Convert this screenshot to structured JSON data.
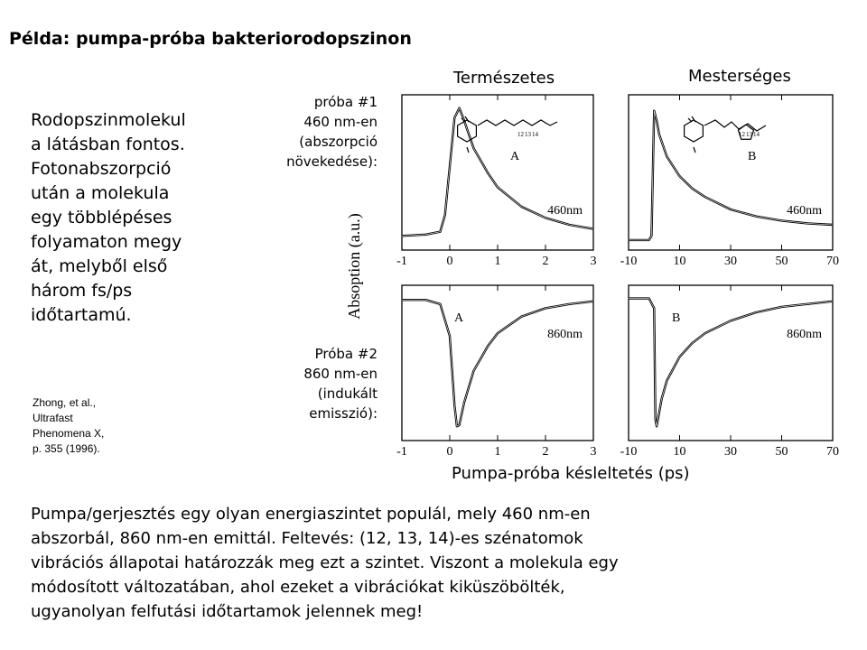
{
  "title": "Példa: pumpa-próba bakteriorodopszinon",
  "intro_lines": [
    "Rodopszinmolekul",
    "a látásban fontos.",
    "Fotonabszorpció",
    "után a molekula",
    "egy többlépéses",
    "folyamaton megy",
    "át, melyből első",
    "három fs/ps",
    "időtartamú."
  ],
  "reference_lines": [
    "Zhong, et al.,",
    "Ultrafast",
    "Phenomena X,",
    "p. 355 (1996)."
  ],
  "probe1_lines": [
    "próba #1",
    "460 nm-en",
    "(abszorpció",
    "növekedése):"
  ],
  "probe2_lines": [
    "Próba #2",
    "860 nm-en",
    "(indukált",
    "emisszió):"
  ],
  "column_natural": "Természetes",
  "column_artificial": "Mesterséges",
  "y_axis_label": "Absoption (a.u.)",
  "x_axis_label": "Pumpa-próba késleltetés (ps)",
  "bottom_lines": [
    "Pumpa/gerjesztés egy olyan energiaszintet populál, mely 460 nm-en",
    "abszorbál, 860 nm-en emittál.  Feltevés: (12, 13, 14)-es szénatomok",
    "vibrációs állapotai határozzák meg ezt a szintet. Viszont a molekula egy",
    "módosított változatában, ahol ezeket a vibrációkat kiküszöbölték,",
    "ugyanolyan felfutási időtartamok jelennek meg!"
  ],
  "chart_data": [
    {
      "type": "line",
      "panel": "top-left",
      "letter": "A",
      "annotation": "460nm",
      "molecule_labels": [
        "12",
        "13",
        "14"
      ],
      "xlim": [
        -1,
        3
      ],
      "x_ticks": [
        "-1",
        "0",
        "1",
        "2",
        "3"
      ],
      "x": [
        -1,
        -0.5,
        -0.2,
        -0.1,
        0,
        0.1,
        0.2,
        0.3,
        0.5,
        0.8,
        1,
        1.5,
        2,
        2.5,
        3
      ],
      "y": [
        0.05,
        0.06,
        0.08,
        0.2,
        0.55,
        0.9,
        0.97,
        0.88,
        0.68,
        0.5,
        0.4,
        0.26,
        0.18,
        0.13,
        0.1
      ]
    },
    {
      "type": "line",
      "panel": "top-right",
      "letter": "B",
      "annotation": "460nm",
      "molecule_labels": [
        "12",
        "13",
        "14"
      ],
      "xlim": [
        -10,
        70
      ],
      "x_ticks": [
        "-10",
        "10",
        "30",
        "50",
        "70"
      ],
      "x": [
        -10,
        -2,
        -1,
        0,
        1,
        2,
        5,
        10,
        15,
        20,
        30,
        40,
        50,
        60,
        70
      ],
      "y": [
        0.02,
        0.02,
        0.05,
        0.95,
        0.88,
        0.78,
        0.62,
        0.48,
        0.39,
        0.33,
        0.24,
        0.19,
        0.16,
        0.14,
        0.13
      ]
    },
    {
      "type": "line",
      "panel": "bottom-left",
      "letter": "A",
      "annotation": "860nm",
      "xlim": [
        -1,
        3
      ],
      "x_ticks": [
        "-1",
        "0",
        "1",
        "2",
        "3"
      ],
      "x": [
        -1,
        -0.5,
        -0.2,
        0,
        0.1,
        0.15,
        0.2,
        0.3,
        0.5,
        0.8,
        1,
        1.5,
        2,
        2.5,
        3
      ],
      "y": [
        0.96,
        0.96,
        0.93,
        0.7,
        0.2,
        0.05,
        0.06,
        0.22,
        0.45,
        0.63,
        0.72,
        0.84,
        0.9,
        0.93,
        0.95
      ]
    },
    {
      "type": "line",
      "panel": "bottom-right",
      "letter": "B",
      "annotation": "860nm",
      "xlim": [
        -10,
        70
      ],
      "x_ticks": [
        "-10",
        "10",
        "30",
        "50",
        "70"
      ],
      "x": [
        -10,
        -2,
        0,
        0.5,
        1,
        3,
        5,
        10,
        15,
        20,
        30,
        40,
        50,
        60,
        70
      ],
      "y": [
        0.97,
        0.97,
        0.9,
        0.1,
        0.05,
        0.25,
        0.38,
        0.55,
        0.65,
        0.72,
        0.81,
        0.87,
        0.91,
        0.93,
        0.95
      ]
    }
  ]
}
